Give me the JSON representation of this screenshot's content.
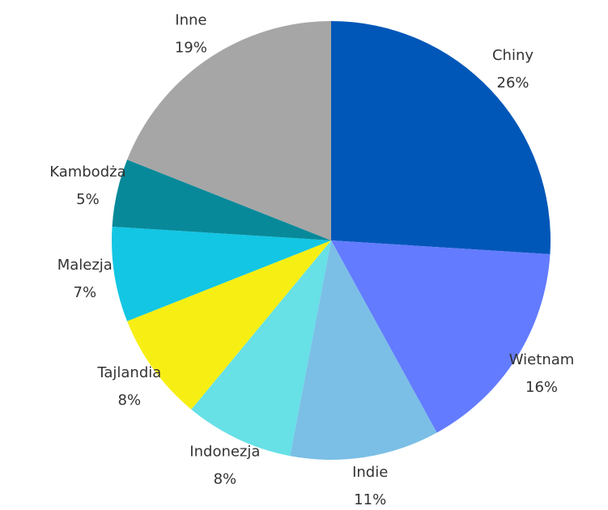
{
  "chart_data": {
    "type": "pie",
    "categories": [
      "Chiny",
      "Wietnam",
      "Indie",
      "Indonezja",
      "Tajlandia",
      "Malezja",
      "Kambodża",
      "Inne"
    ],
    "values": [
      26,
      16,
      11,
      8,
      8,
      7,
      5,
      19
    ],
    "value_labels": [
      "26%",
      "16%",
      "11%",
      "8%",
      "8%",
      "7%",
      "5%",
      "19%"
    ],
    "colors": [
      "#0057b8",
      "#637bfe",
      "#7bbfe6",
      "#67e0e6",
      "#f7ef14",
      "#13c6e3",
      "#08899a",
      "#a6a6a6"
    ]
  }
}
